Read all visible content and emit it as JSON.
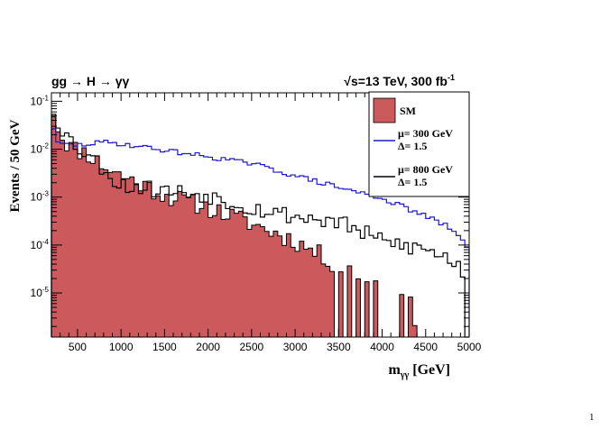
{
  "page": {
    "top_fragment": "",
    "corner_mark": "1"
  },
  "chart_data": {
    "type": "histogram",
    "title_left": "gg → H → γγ",
    "title_right": "√s=13 TeV, 300 fb",
    "title_right_sup": "-1",
    "xlabel": "m",
    "xlabel_sub": "γγ",
    "xlabel_unit": " [GeV]",
    "ylabel": "Events  / 50 GeV",
    "x_range": [
      200,
      5000
    ],
    "bin_width": 50,
    "y_scale": "log",
    "ylim": [
      1.2e-06,
      0.15
    ],
    "x_ticks": [
      500,
      1000,
      1500,
      2000,
      2500,
      3000,
      3500,
      4000,
      4500,
      5000
    ],
    "y_ticks": [
      {
        "value": 1e-05,
        "base": "10",
        "exp": "-5"
      },
      {
        "value": 0.0001,
        "base": "10",
        "exp": "-4"
      },
      {
        "value": 0.001,
        "base": "10",
        "exp": "-3"
      },
      {
        "value": 0.01,
        "base": "10",
        "exp": "-2"
      },
      {
        "value": 0.1,
        "base": "10",
        "exp": "-1"
      }
    ],
    "legend": {
      "placement": "top-right",
      "entries": [
        {
          "key": "sm",
          "lines": [
            "SM"
          ]
        },
        {
          "key": "mu300",
          "lines": [
            "μ= 300 GeV",
            "Δ= 1.5"
          ]
        },
        {
          "key": "mu800",
          "lines": [
            "μ= 800 GeV",
            "Δ= 1.5"
          ]
        }
      ]
    },
    "colors": {
      "sm_fill": "#cc5a5c",
      "mu300": "#1a1acc",
      "mu800": "#000000"
    },
    "series": [
      {
        "key": "sm",
        "legend_label": "SM",
        "style": "filled",
        "anchors": [
          [
            200,
            0.09
          ],
          [
            250,
            0.04
          ],
          [
            300,
            0.02
          ],
          [
            400,
            0.012
          ],
          [
            500,
            0.0095
          ],
          [
            600,
            0.0085
          ],
          [
            700,
            0.006
          ],
          [
            800,
            0.0045
          ],
          [
            900,
            0.0035
          ],
          [
            1000,
            0.0028
          ],
          [
            1200,
            0.002
          ],
          [
            1500,
            0.0011
          ],
          [
            2000,
            0.0006
          ],
          [
            2500,
            0.00028
          ],
          [
            3000,
            0.00012
          ],
          [
            3300,
            6e-05
          ],
          [
            3500,
            3.5e-05
          ],
          [
            4000,
            1.8e-05
          ],
          [
            4300,
            1e-05
          ],
          [
            4400,
            1.5e-06
          ]
        ],
        "jitter": 0.2,
        "zero_bins": [
          3450,
          3550,
          3650,
          3750,
          3850,
          3950,
          4000,
          4050,
          4100,
          4150,
          4250,
          4400,
          4450,
          4500,
          4550,
          4600,
          4650,
          4700,
          4750,
          4800,
          4850,
          4900,
          4950
        ]
      },
      {
        "key": "mu300",
        "legend_label": "μ= 300 GeV Δ= 1.5",
        "style": "line",
        "anchors": [
          [
            200,
            0.06
          ],
          [
            250,
            0.013
          ],
          [
            500,
            0.012
          ],
          [
            800,
            0.014
          ],
          [
            1000,
            0.013
          ],
          [
            1500,
            0.0095
          ],
          [
            2000,
            0.007
          ],
          [
            2500,
            0.005
          ],
          [
            3000,
            0.0028
          ],
          [
            3500,
            0.0016
          ],
          [
            4000,
            0.00095
          ],
          [
            4500,
            0.0004
          ],
          [
            4800,
            0.00022
          ],
          [
            5000,
            8e-05
          ]
        ],
        "jitter": 0.05,
        "zero_bins": []
      },
      {
        "key": "mu800",
        "legend_label": "μ= 800 GeV Δ= 1.5",
        "style": "line",
        "anchors": [
          [
            200,
            0.085
          ],
          [
            300,
            0.03
          ],
          [
            400,
            0.017
          ],
          [
            500,
            0.011
          ],
          [
            600,
            0.0085
          ],
          [
            700,
            0.006
          ],
          [
            800,
            0.004
          ],
          [
            900,
            0.0025
          ],
          [
            1000,
            0.0018
          ],
          [
            1200,
            0.0016
          ],
          [
            1500,
            0.0014
          ],
          [
            2000,
            0.0011
          ],
          [
            2500,
            0.0006
          ],
          [
            3000,
            0.0004
          ],
          [
            3500,
            0.0003
          ],
          [
            4000,
            0.00012
          ],
          [
            4500,
            8e-05
          ],
          [
            4800,
            5e-05
          ],
          [
            5000,
            2e-05
          ]
        ],
        "jitter": 0.18,
        "zero_bins": [
          4950
        ]
      }
    ]
  }
}
